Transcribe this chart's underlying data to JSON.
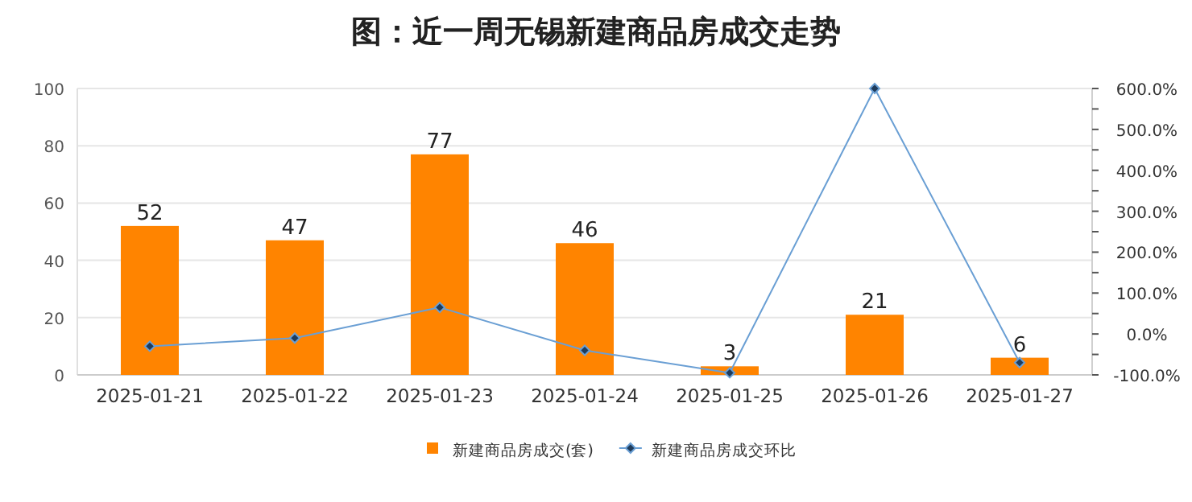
{
  "chart_data": {
    "type": "bar",
    "title": "图：近一周无锡新建商品房成交走势",
    "categories": [
      "2025-01-21",
      "2025-01-22",
      "2025-01-23",
      "2025-01-24",
      "2025-01-25",
      "2025-01-26",
      "2025-01-27"
    ],
    "series": [
      {
        "name": "新建商品房成交(套)",
        "color": "#ff8400",
        "values": [
          52,
          47,
          77,
          46,
          3,
          21,
          6
        ],
        "value_labels": [
          "52",
          "47",
          "77",
          "46",
          "3",
          "21",
          "6"
        ]
      },
      {
        "name": "新建商品房成交环比",
        "type": "line",
        "axis": "y2",
        "color": "#6a9fd4",
        "marker": "diamond",
        "values": [
          -30,
          -10,
          65,
          -40,
          -95,
          600,
          -70
        ]
      }
    ],
    "ylim": [
      0,
      100
    ],
    "yticks": [
      0,
      20,
      40,
      60,
      80,
      100
    ],
    "y2lim": [
      -100,
      600
    ],
    "y2ticks": [
      {
        "value": -100,
        "label": "-100.0%"
      },
      {
        "value": -50,
        "label": null
      },
      {
        "value": 0,
        "label": "0.0%"
      },
      {
        "value": 50,
        "label": null
      },
      {
        "value": 100,
        "label": "100.0%"
      },
      {
        "value": 150,
        "label": null
      },
      {
        "value": 200,
        "label": "200.0%"
      },
      {
        "value": 250,
        "label": null
      },
      {
        "value": 300,
        "label": "300.0%"
      },
      {
        "value": 350,
        "label": null
      },
      {
        "value": 400,
        "label": "400.0%"
      },
      {
        "value": 450,
        "label": null
      },
      {
        "value": 500,
        "label": "500.0%"
      },
      {
        "value": 550,
        "label": null
      },
      {
        "value": 600,
        "label": "600.0%"
      }
    ],
    "grid": "y",
    "legend": "bottom"
  }
}
